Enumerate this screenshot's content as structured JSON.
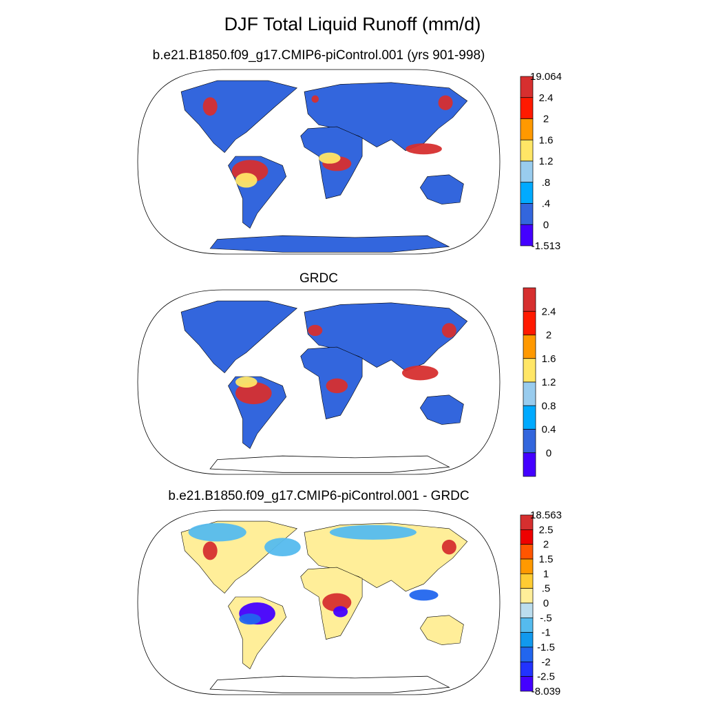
{
  "title": "DJF Total Liquid Runoff (mm/d)",
  "chart_data": [
    {
      "type": "heatmap",
      "subtitle": "b.e21.B1850.f09_g17.CMIP6-piControl.001 (yrs 901-998)",
      "projection": "Robinson",
      "colorbar": {
        "labels": [
          "19.064",
          "2.4",
          "2",
          "1.6",
          "1.2",
          ".8",
          ".4",
          "0",
          "-1.513"
        ],
        "colors": [
          "#d62f2f",
          "#ff1a00",
          "#ff9900",
          "#ffe666",
          "#99ccee",
          "#00aaff",
          "#3366dd",
          "#4400ff"
        ],
        "boundaries": [
          -1.513,
          0,
          0.4,
          0.8,
          1.2,
          1.6,
          2.0,
          2.4,
          19.064
        ]
      }
    },
    {
      "type": "heatmap",
      "subtitle": "GRDC",
      "projection": "Robinson",
      "colorbar": {
        "labels": [
          "2.4",
          "2",
          "1.6",
          "1.2",
          "0.8",
          "0.4",
          "0"
        ],
        "colors": [
          "#d62f2f",
          "#ff1a00",
          "#ff9900",
          "#ffe666",
          "#99ccee",
          "#00aaff",
          "#3366dd",
          "#4400ff"
        ],
        "boundaries": [
          0,
          0.4,
          0.8,
          1.2,
          1.6,
          2.0,
          2.4
        ]
      }
    },
    {
      "type": "heatmap",
      "subtitle": "b.e21.B1850.f09_g17.CMIP6-piControl.001 - GRDC",
      "projection": "Robinson",
      "colorbar": {
        "labels": [
          "18.563",
          "2.5",
          "2",
          "1.5",
          "1",
          ".5",
          "0",
          "-.5",
          "-1",
          "-1.5",
          "-2",
          "-2.5",
          "-8.039"
        ],
        "colors": [
          "#d62f2f",
          "#ee0000",
          "#ff5500",
          "#ff9900",
          "#ffcc33",
          "#ffee99",
          "#bbddee",
          "#55bbee",
          "#1199ee",
          "#2266ee",
          "#2233ff",
          "#4400ff"
        ],
        "boundaries": [
          -8.039,
          -2.5,
          -2,
          -1.5,
          -1,
          -0.5,
          0,
          0.5,
          1,
          1.5,
          2,
          2.5,
          18.563
        ]
      }
    }
  ]
}
